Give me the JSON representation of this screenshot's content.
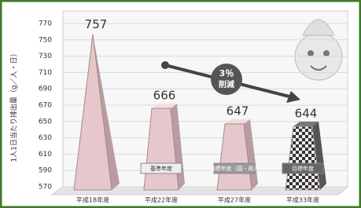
{
  "chart_data": {
    "type": "bar",
    "y_label": "1人1日当たり排出量（g／人・日）",
    "categories": [
      "平成18年度",
      "平成22年度",
      "平成27年度",
      "平成33年度"
    ],
    "values": [
      757,
      666,
      647,
      644
    ],
    "color": "#e6c7cc",
    "ylim": [
      570,
      770
    ],
    "yticks": [
      570,
      590,
      610,
      630,
      650,
      670,
      690,
      710,
      730,
      750,
      770
    ],
    "grid": true,
    "bar_notes": [
      null,
      "基準年度",
      "目標年度（国・県）",
      "目標年度"
    ],
    "reduction": [
      "3％",
      "削減"
    ]
  }
}
